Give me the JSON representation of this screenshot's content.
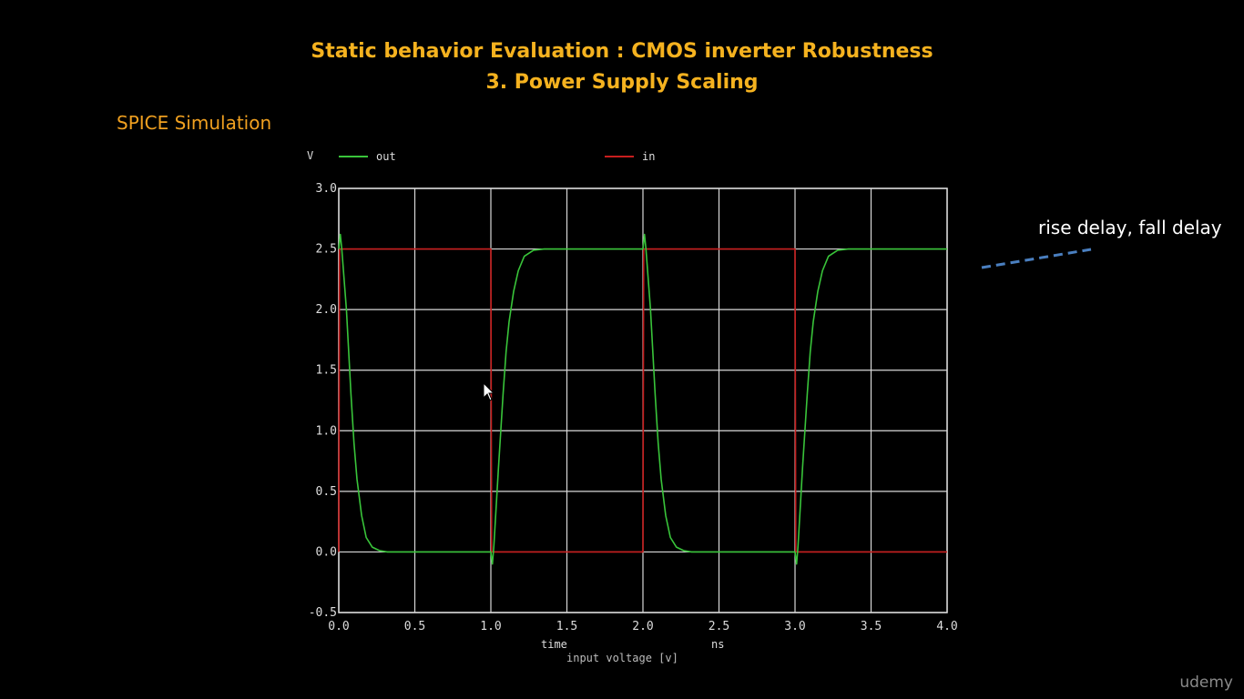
{
  "slide": {
    "title_line1": "Static behavior Evaluation : CMOS inverter Robustness",
    "title_line2": "3. Power Supply Scaling",
    "subtitle": "SPICE Simulation",
    "annotation": "rise delay, fall delay",
    "brand": "udemy"
  },
  "chart_data": {
    "type": "line",
    "ylabel": "V",
    "xlabel": "time",
    "xunit": "ns",
    "obscured_label": "input voltage [v]",
    "xlim": [
      0,
      4.0
    ],
    "ylim": [
      -0.5,
      3.0
    ],
    "xticks": [
      "0.0",
      "0.5",
      "1.0",
      "1.5",
      "2.0",
      "2.5",
      "3.0",
      "3.5",
      "4.0"
    ],
    "yticks": [
      "3.0",
      "2.5",
      "2.0",
      "1.5",
      "1.0",
      "0.5",
      "0.0",
      "-0.5"
    ],
    "grid": true,
    "legend_position": "top",
    "series": [
      {
        "name": "out",
        "color": "#39c43a",
        "x": [
          0,
          0.01,
          0.02,
          0.05,
          0.08,
          0.1,
          0.12,
          0.15,
          0.18,
          0.22,
          0.27,
          0.32,
          1.0,
          1.01,
          1.02,
          1.05,
          1.08,
          1.1,
          1.12,
          1.15,
          1.18,
          1.22,
          1.28,
          1.35,
          1.42,
          2.0,
          2.01,
          2.02,
          2.05,
          2.08,
          2.1,
          2.12,
          2.15,
          2.18,
          2.22,
          2.27,
          2.32,
          3.0,
          3.01,
          3.02,
          3.05,
          3.08,
          3.1,
          3.12,
          3.15,
          3.18,
          3.22,
          3.28,
          3.35,
          3.42,
          4.0
        ],
        "y": [
          2.5,
          2.62,
          2.5,
          2.0,
          1.3,
          0.9,
          0.6,
          0.3,
          0.12,
          0.04,
          0.01,
          0.0,
          0.0,
          -0.1,
          0.05,
          0.7,
          1.3,
          1.65,
          1.9,
          2.15,
          2.32,
          2.44,
          2.49,
          2.5,
          2.5,
          2.5,
          2.62,
          2.5,
          2.0,
          1.3,
          0.9,
          0.6,
          0.3,
          0.12,
          0.04,
          0.01,
          0.0,
          0.0,
          -0.1,
          0.05,
          0.7,
          1.3,
          1.65,
          1.9,
          2.15,
          2.32,
          2.44,
          2.49,
          2.5,
          2.5,
          2.5
        ]
      },
      {
        "name": "in",
        "color": "#c81e1e",
        "x": [
          0,
          0.005,
          4.0,
          1.0,
          1.005,
          2.0,
          2.005,
          3.0,
          3.005
        ],
        "y": [
          0,
          2.5,
          2.5,
          2.5,
          0,
          0,
          2.5,
          2.5,
          0
        ],
        "segments": [
          {
            "x": [
              0,
              0.005,
              1.0,
              1.005,
              2.0,
              2.005,
              3.0,
              3.005,
              4.0
            ],
            "y": [
              0,
              2.5,
              2.5,
              0,
              0,
              2.5,
              2.5,
              0,
              0
            ]
          }
        ]
      }
    ]
  }
}
